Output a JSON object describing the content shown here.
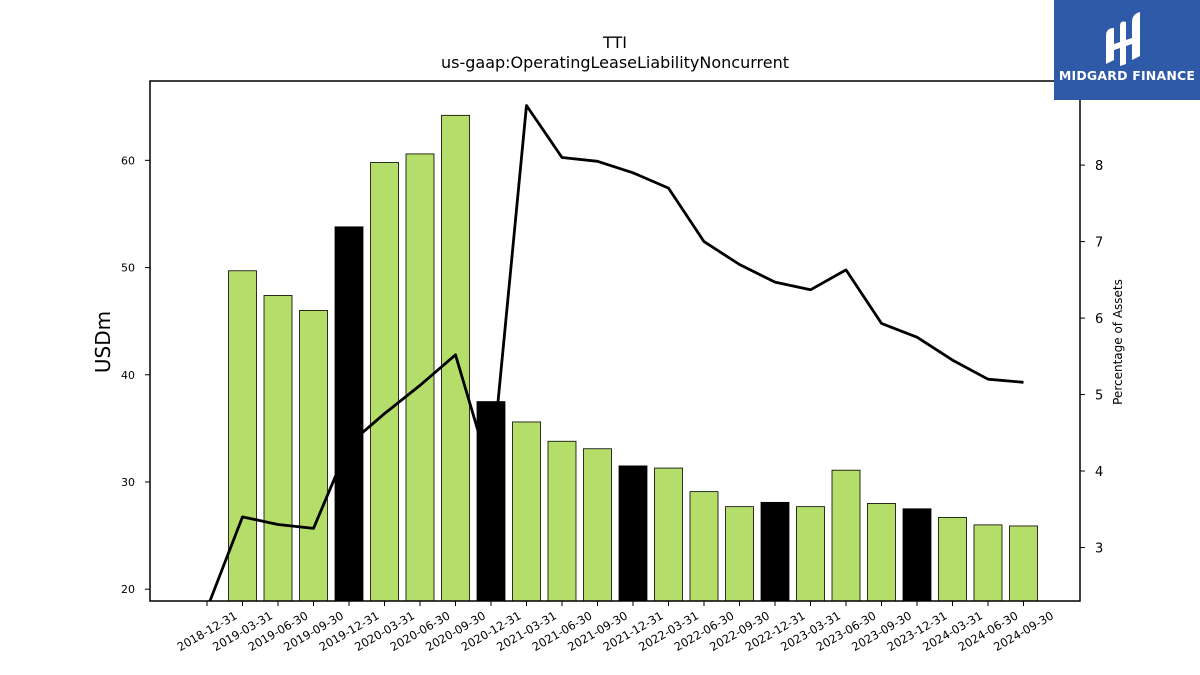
{
  "chart_data": {
    "type": "bar",
    "title": "TTI",
    "subtitle": "us-gaap:OperatingLeaseLiabilityNoncurrent",
    "ylabel": "USDm",
    "y2label": "Percentage of Assets",
    "categories": [
      "2018-12-31",
      "2019-03-31",
      "2019-06-30",
      "2019-09-30",
      "2019-12-31",
      "2020-03-31",
      "2020-06-30",
      "2020-09-30",
      "2020-12-31",
      "2021-03-31",
      "2021-06-30",
      "2021-09-30",
      "2021-12-31",
      "2022-03-31",
      "2022-06-30",
      "2022-09-30",
      "2022-12-31",
      "2023-03-31",
      "2023-06-30",
      "2023-09-30",
      "2023-12-31",
      "2024-03-31",
      "2024-06-30",
      "2024-09-30"
    ],
    "series": [
      {
        "values": [
          null,
          49.7,
          47.4,
          46.0,
          53.8,
          59.8,
          60.6,
          64.2,
          37.5,
          35.6,
          33.8,
          33.1,
          31.5,
          31.3,
          29.1,
          27.7,
          28.1,
          27.7,
          31.1,
          28.0,
          27.5,
          26.7,
          26.0,
          25.9
        ]
      },
      {
        "values": [
          2.2,
          3.4,
          3.3,
          3.25,
          4.35,
          4.75,
          5.12,
          5.52,
          3.95,
          8.78,
          8.1,
          8.05,
          7.9,
          7.7,
          7.0,
          6.7,
          6.47,
          6.37,
          6.63,
          5.93,
          5.75,
          5.45,
          5.2,
          5.16
        ]
      }
    ],
    "quarter_end_dates": [
      "2019-12-31",
      "2020-12-31",
      "2021-12-31",
      "2022-12-31",
      "2023-12-31"
    ],
    "ylim": [
      18.9,
      67.4
    ],
    "y_ticks": [
      20,
      30,
      40,
      50,
      60
    ],
    "y2lim": [
      2.3,
      9.1
    ],
    "y2_ticks": [
      3,
      4,
      5,
      6,
      7,
      8
    ],
    "colors": {
      "bar": "#b5dd6a",
      "bar_year_end": "#000000",
      "line": "#000000"
    },
    "legend": "none",
    "grid": false
  },
  "logo": {
    "text": "MIDGARD FINANCE",
    "color": "#2f5aa8"
  }
}
